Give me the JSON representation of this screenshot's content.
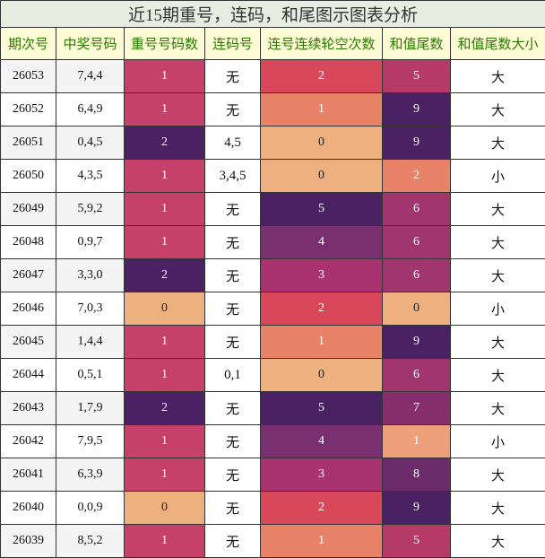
{
  "table": {
    "title": "近15期重号，连码，和尾图示图表分析",
    "headers": [
      "期次号",
      "中奖号码",
      "重号号码数",
      "连码号",
      "连号连续轮空次数",
      "和值尾数",
      "和值尾数大小"
    ],
    "rows": [
      [
        "26053",
        "7,4,4",
        1,
        "无",
        2,
        5,
        "大"
      ],
      [
        "26052",
        "6,4,9",
        1,
        "无",
        1,
        9,
        "大"
      ],
      [
        "26051",
        "0,4,5",
        2,
        "4,5",
        0,
        9,
        "大"
      ],
      [
        "26050",
        "4,3,5",
        1,
        "3,4,5",
        0,
        2,
        "小"
      ],
      [
        "26049",
        "5,9,2",
        1,
        "无",
        5,
        6,
        "大"
      ],
      [
        "26048",
        "0,9,7",
        1,
        "无",
        4,
        6,
        "大"
      ],
      [
        "26047",
        "3,3,0",
        2,
        "无",
        3,
        6,
        "大"
      ],
      [
        "26046",
        "7,0,3",
        0,
        "无",
        2,
        0,
        "小"
      ],
      [
        "26045",
        "1,4,4",
        1,
        "无",
        1,
        9,
        "大"
      ],
      [
        "26044",
        "0,5,1",
        1,
        "0,1",
        0,
        6,
        "大"
      ],
      [
        "26043",
        "1,7,9",
        2,
        "无",
        5,
        7,
        "大"
      ],
      [
        "26042",
        "7,9,5",
        1,
        "无",
        4,
        1,
        "小"
      ],
      [
        "26041",
        "6,3,9",
        1,
        "无",
        3,
        8,
        "大"
      ],
      [
        "26040",
        "0,0,9",
        0,
        "无",
        2,
        9,
        "大"
      ],
      [
        "26039",
        "8,5,2",
        1,
        "无",
        1,
        5,
        "大"
      ]
    ],
    "palettes": {
      "2": [
        "#eeb07f",
        "#c5416a",
        "#4a2264"
      ],
      "4": [
        "#eeb07f",
        "#e8836a",
        "#d9475a",
        "#a8336e",
        "#7a2f70",
        "#4a2264"
      ],
      "5": [
        "#eeb07f",
        "#eda07a",
        "#e8836a",
        "#e0625f",
        "#cf4560",
        "#b63a68",
        "#a1356d",
        "#852f6d",
        "#6b2a6a",
        "#4a2264"
      ]
    }
  }
}
